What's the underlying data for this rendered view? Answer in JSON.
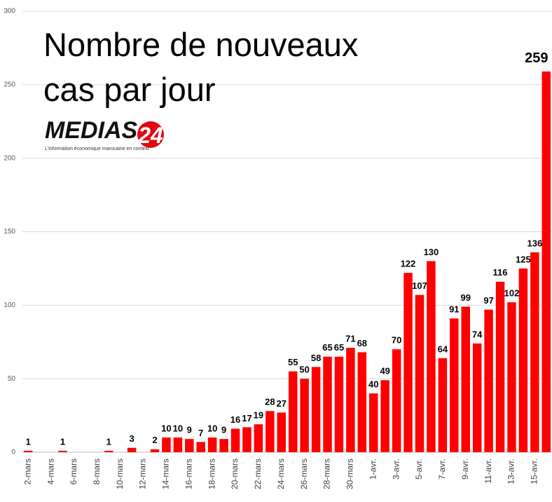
{
  "chart_data": {
    "type": "bar",
    "title_lines": [
      "Nombre de nouveaux",
      "cas par jour"
    ],
    "logo": {
      "name": "MEDIAS",
      "number": "24",
      "tagline": "L'information économique marocaine en continu"
    },
    "categories": [
      "2-mars",
      null,
      "4-mars",
      null,
      "6-mars",
      null,
      "8-mars",
      null,
      "10-mars",
      null,
      "12-mars",
      null,
      "14-mars",
      null,
      "16-mars",
      null,
      "18-mars",
      null,
      "20-mars",
      null,
      "22-mars",
      null,
      "24-mars",
      null,
      "26-mars",
      null,
      "28-mars",
      null,
      "30-mars",
      null,
      "1-avr.",
      null,
      "3-avr.",
      null,
      "5-avr.",
      null,
      "7-avr.",
      null,
      "9-avr.",
      null,
      "11-avr.",
      null,
      "13-avr.",
      null,
      "15-avr.",
      null
    ],
    "values": [
      1,
      0,
      0,
      1,
      0,
      0,
      0,
      1,
      0,
      3,
      0,
      2,
      10,
      10,
      9,
      7,
      10,
      9,
      16,
      17,
      19,
      28,
      27,
      55,
      50,
      58,
      65,
      65,
      71,
      68,
      40,
      49,
      70,
      122,
      107,
      130,
      64,
      91,
      99,
      74,
      97,
      116,
      102,
      125,
      136,
      259
    ],
    "color": "#ff0000",
    "ylim": [
      0,
      300
    ],
    "yticks": [
      0,
      50,
      100,
      150,
      200,
      250,
      300
    ],
    "grid": true
  }
}
